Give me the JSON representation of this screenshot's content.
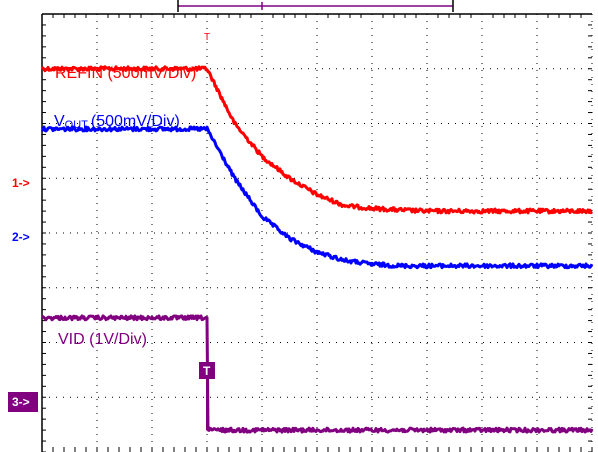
{
  "chart_data": {
    "type": "line",
    "title": "",
    "xlabel": "",
    "ylabel": "",
    "grid": true,
    "grid_divisions": {
      "x": 10,
      "y": 8
    },
    "colors": {
      "REFIN": "#ff0000",
      "VOUT": "#0000ff",
      "VID": "#800080",
      "grid": "#000000"
    },
    "trigger_marker": "T",
    "xlim": [
      0,
      10
    ],
    "ylim": [
      -4.4,
      3.6
    ],
    "series": [
      {
        "name": "REFIN (500mV/Div)",
        "label_main": "REFIN (500mV/Div)",
        "label_sub": "",
        "label_tail": "",
        "key": "REFIN",
        "ref_marker": "1->",
        "x": [
          0,
          3,
          3.5,
          4,
          4.5,
          5,
          5.5,
          6,
          6.5,
          7,
          8,
          9,
          10
        ],
        "y": [
          2.6,
          2.6,
          1.6,
          1.0,
          0.6,
          0.3,
          0.1,
          0.05,
          0.02,
          0.0,
          0.0,
          0.0,
          0.0
        ]
      },
      {
        "name": "VOUT (500mV/Div)",
        "label_main": "V",
        "label_sub": "OUT",
        "label_tail": "(500mV/Div)",
        "key": "VOUT",
        "ref_marker": "2->",
        "x": [
          0,
          3,
          3.5,
          4,
          4.5,
          5,
          5.5,
          6,
          6.5,
          7,
          8,
          9,
          10
        ],
        "y": [
          1.5,
          1.5,
          0.6,
          -0.1,
          -0.5,
          -0.75,
          -0.9,
          -0.97,
          -1.0,
          -1.0,
          -1.0,
          -1.0,
          -1.0
        ]
      },
      {
        "name": "VID (1V/Div)",
        "label_main": "VID (1V/Div)",
        "label_sub": "",
        "label_tail": "",
        "key": "VID",
        "ref_marker": "3->",
        "x": [
          0,
          3,
          3,
          10
        ],
        "y": [
          -1.95,
          -1.95,
          -4.0,
          -4.0
        ]
      }
    ]
  }
}
